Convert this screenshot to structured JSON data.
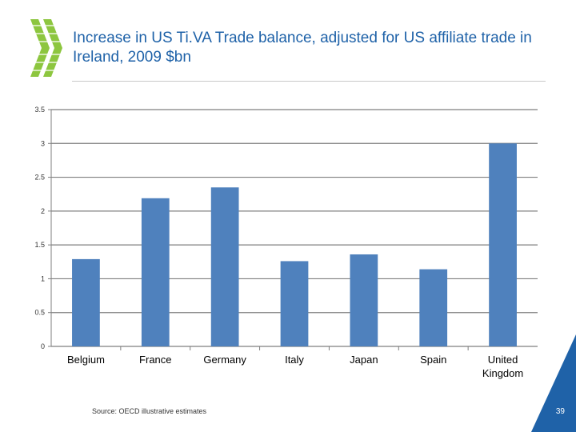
{
  "header": {
    "title": "Increase in US Ti.VA Trade balance, adjusted for US affiliate trade in Ireland, 2009 $bn"
  },
  "colors": {
    "accent": "#1f62a8",
    "bar": "#4f81bd",
    "logo": "#8dc63f",
    "corner": "#1f62a8"
  },
  "chart_data": {
    "type": "bar",
    "title": "Increase in US Ti.VA Trade balance, adjusted for US affiliate trade in Ireland, 2009 $bn",
    "xlabel": "",
    "ylabel": "",
    "categories": [
      "Belgium",
      "France",
      "Germany",
      "Italy",
      "Japan",
      "Spain",
      "United Kingdom"
    ],
    "category_lines": [
      [
        "Belgium"
      ],
      [
        "France"
      ],
      [
        "Germany"
      ],
      [
        "Italy"
      ],
      [
        "Japan"
      ],
      [
        "Spain"
      ],
      [
        "United",
        "Kingdom"
      ]
    ],
    "values": [
      1.29,
      2.19,
      2.35,
      1.26,
      1.36,
      1.14,
      3.0
    ],
    "ylim": [
      0,
      3.5
    ],
    "yticks": [
      "0",
      "0.5",
      "1",
      "1.5",
      "2",
      "2.5",
      "3",
      "3.5"
    ],
    "grid": true,
    "legend": "none"
  },
  "footer": {
    "source": "Source: OECD illustrative estimates",
    "page_number": "39"
  }
}
